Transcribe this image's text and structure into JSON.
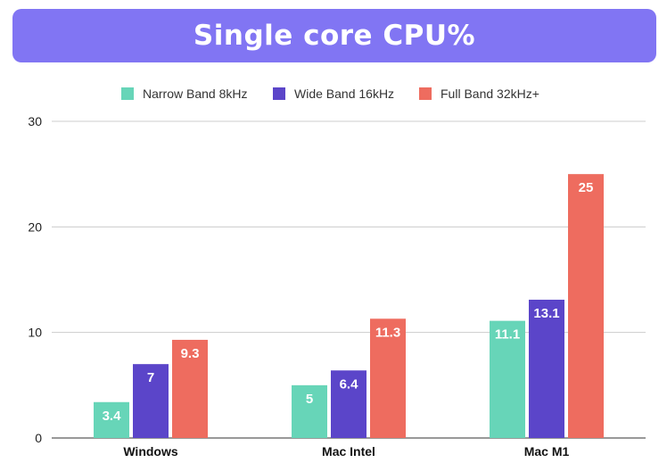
{
  "chart_data": {
    "type": "bar",
    "title": "Single core CPU%",
    "categories": [
      "Windows",
      "Mac Intel",
      "Mac M1"
    ],
    "series": [
      {
        "name": "Narrow Band 8kHz",
        "color": "#67d5b8",
        "values": [
          3.4,
          5,
          11.1
        ],
        "labels": [
          "3.4",
          "5",
          "11.1"
        ]
      },
      {
        "name": "Wide Band 16kHz",
        "color": "#5b45c9",
        "values": [
          7,
          6.4,
          13.1
        ],
        "labels": [
          "7",
          "6.4",
          "13.1"
        ]
      },
      {
        "name": "Full Band 32kHz+",
        "color": "#ee6c5f",
        "values": [
          9.3,
          11.3,
          25
        ],
        "labels": [
          "9.3",
          "11.3",
          "25"
        ]
      }
    ],
    "yticks": [
      0,
      10,
      20,
      30
    ],
    "ylim": [
      0,
      30
    ],
    "xlabel": "",
    "ylabel": "",
    "legend_position": "top-center",
    "grid": true,
    "title_color": "#8175f3"
  }
}
